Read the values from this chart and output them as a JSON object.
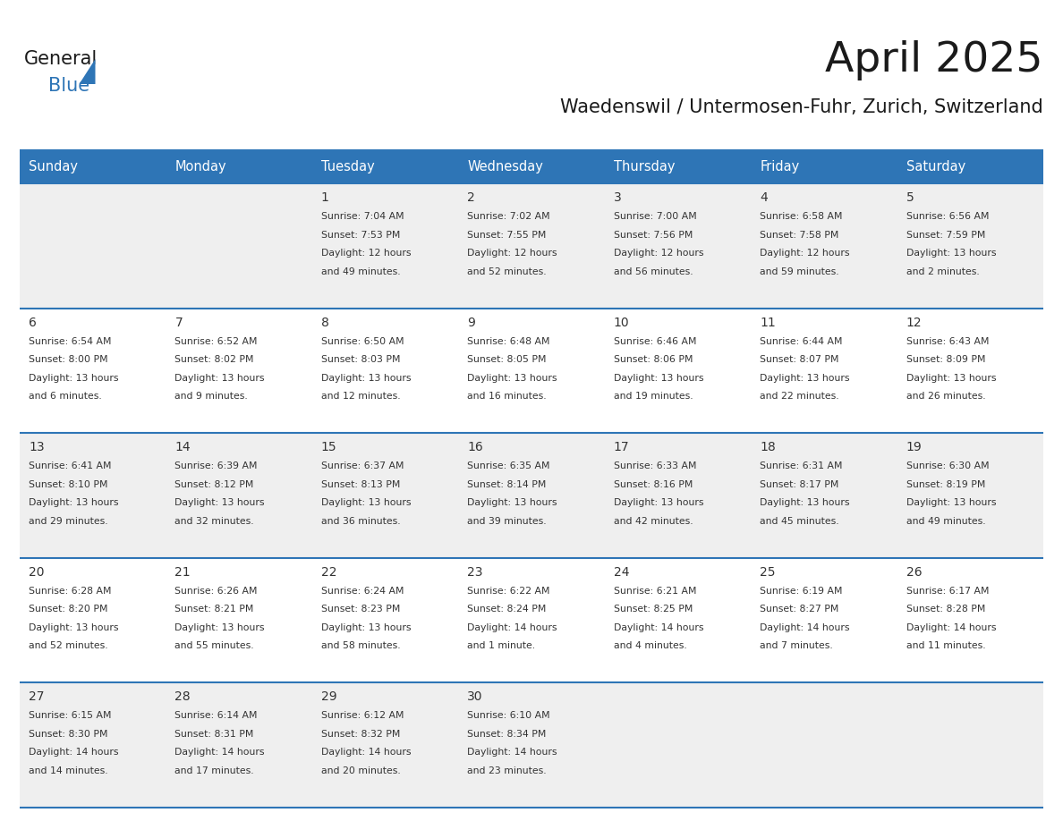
{
  "title": "April 2025",
  "subtitle": "Waedenswil / Untermosen-Fuhr, Zurich, Switzerland",
  "days_of_week": [
    "Sunday",
    "Monday",
    "Tuesday",
    "Wednesday",
    "Thursday",
    "Friday",
    "Saturday"
  ],
  "header_bg": "#2E75B6",
  "header_text": "#FFFFFF",
  "row_bg_light": "#EFEFEF",
  "row_bg_white": "#FFFFFF",
  "row_line_color": "#2E75B6",
  "title_color": "#1a1a1a",
  "subtitle_color": "#1a1a1a",
  "text_color": "#333333",
  "day_number_color": "#333333",
  "logo_general_color": "#1a1a1a",
  "logo_blue_color": "#2E75B6",
  "fig_width": 11.88,
  "fig_height": 9.18,
  "calendar": [
    [
      {
        "day": null,
        "sunrise": null,
        "sunset": null,
        "daylight": null
      },
      {
        "day": null,
        "sunrise": null,
        "sunset": null,
        "daylight": null
      },
      {
        "day": 1,
        "sunrise": "7:04 AM",
        "sunset": "7:53 PM",
        "daylight": "12 hours and 49 minutes."
      },
      {
        "day": 2,
        "sunrise": "7:02 AM",
        "sunset": "7:55 PM",
        "daylight": "12 hours and 52 minutes."
      },
      {
        "day": 3,
        "sunrise": "7:00 AM",
        "sunset": "7:56 PM",
        "daylight": "12 hours and 56 minutes."
      },
      {
        "day": 4,
        "sunrise": "6:58 AM",
        "sunset": "7:58 PM",
        "daylight": "12 hours and 59 minutes."
      },
      {
        "day": 5,
        "sunrise": "6:56 AM",
        "sunset": "7:59 PM",
        "daylight": "13 hours and 2 minutes."
      }
    ],
    [
      {
        "day": 6,
        "sunrise": "6:54 AM",
        "sunset": "8:00 PM",
        "daylight": "13 hours and 6 minutes."
      },
      {
        "day": 7,
        "sunrise": "6:52 AM",
        "sunset": "8:02 PM",
        "daylight": "13 hours and 9 minutes."
      },
      {
        "day": 8,
        "sunrise": "6:50 AM",
        "sunset": "8:03 PM",
        "daylight": "13 hours and 12 minutes."
      },
      {
        "day": 9,
        "sunrise": "6:48 AM",
        "sunset": "8:05 PM",
        "daylight": "13 hours and 16 minutes."
      },
      {
        "day": 10,
        "sunrise": "6:46 AM",
        "sunset": "8:06 PM",
        "daylight": "13 hours and 19 minutes."
      },
      {
        "day": 11,
        "sunrise": "6:44 AM",
        "sunset": "8:07 PM",
        "daylight": "13 hours and 22 minutes."
      },
      {
        "day": 12,
        "sunrise": "6:43 AM",
        "sunset": "8:09 PM",
        "daylight": "13 hours and 26 minutes."
      }
    ],
    [
      {
        "day": 13,
        "sunrise": "6:41 AM",
        "sunset": "8:10 PM",
        "daylight": "13 hours and 29 minutes."
      },
      {
        "day": 14,
        "sunrise": "6:39 AM",
        "sunset": "8:12 PM",
        "daylight": "13 hours and 32 minutes."
      },
      {
        "day": 15,
        "sunrise": "6:37 AM",
        "sunset": "8:13 PM",
        "daylight": "13 hours and 36 minutes."
      },
      {
        "day": 16,
        "sunrise": "6:35 AM",
        "sunset": "8:14 PM",
        "daylight": "13 hours and 39 minutes."
      },
      {
        "day": 17,
        "sunrise": "6:33 AM",
        "sunset": "8:16 PM",
        "daylight": "13 hours and 42 minutes."
      },
      {
        "day": 18,
        "sunrise": "6:31 AM",
        "sunset": "8:17 PM",
        "daylight": "13 hours and 45 minutes."
      },
      {
        "day": 19,
        "sunrise": "6:30 AM",
        "sunset": "8:19 PM",
        "daylight": "13 hours and 49 minutes."
      }
    ],
    [
      {
        "day": 20,
        "sunrise": "6:28 AM",
        "sunset": "8:20 PM",
        "daylight": "13 hours and 52 minutes."
      },
      {
        "day": 21,
        "sunrise": "6:26 AM",
        "sunset": "8:21 PM",
        "daylight": "13 hours and 55 minutes."
      },
      {
        "day": 22,
        "sunrise": "6:24 AM",
        "sunset": "8:23 PM",
        "daylight": "13 hours and 58 minutes."
      },
      {
        "day": 23,
        "sunrise": "6:22 AM",
        "sunset": "8:24 PM",
        "daylight": "14 hours and 1 minute."
      },
      {
        "day": 24,
        "sunrise": "6:21 AM",
        "sunset": "8:25 PM",
        "daylight": "14 hours and 4 minutes."
      },
      {
        "day": 25,
        "sunrise": "6:19 AM",
        "sunset": "8:27 PM",
        "daylight": "14 hours and 7 minutes."
      },
      {
        "day": 26,
        "sunrise": "6:17 AM",
        "sunset": "8:28 PM",
        "daylight": "14 hours and 11 minutes."
      }
    ],
    [
      {
        "day": 27,
        "sunrise": "6:15 AM",
        "sunset": "8:30 PM",
        "daylight": "14 hours and 14 minutes."
      },
      {
        "day": 28,
        "sunrise": "6:14 AM",
        "sunset": "8:31 PM",
        "daylight": "14 hours and 17 minutes."
      },
      {
        "day": 29,
        "sunrise": "6:12 AM",
        "sunset": "8:32 PM",
        "daylight": "14 hours and 20 minutes."
      },
      {
        "day": 30,
        "sunrise": "6:10 AM",
        "sunset": "8:34 PM",
        "daylight": "14 hours and 23 minutes."
      },
      {
        "day": null,
        "sunrise": null,
        "sunset": null,
        "daylight": null
      },
      {
        "day": null,
        "sunrise": null,
        "sunset": null,
        "daylight": null
      },
      {
        "day": null,
        "sunrise": null,
        "sunset": null,
        "daylight": null
      }
    ]
  ]
}
